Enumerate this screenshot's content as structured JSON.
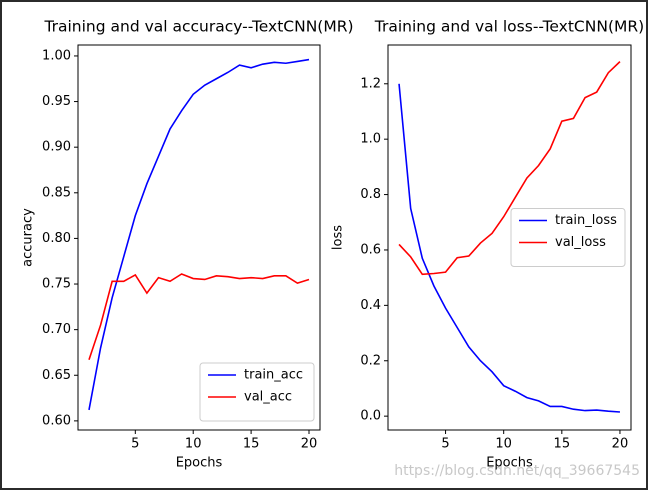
{
  "chart_data": [
    {
      "type": "line",
      "title": "Training and val accuracy--TextCNN(MR)",
      "x_label": "Epochs",
      "y_label": "accuracy",
      "x": [
        1,
        2,
        3,
        4,
        5,
        6,
        7,
        8,
        9,
        10,
        11,
        12,
        13,
        14,
        15,
        16,
        17,
        18,
        19,
        20
      ],
      "series": [
        {
          "name": "train_acc",
          "color": "#0000ff",
          "values": [
            0.612,
            0.68,
            0.735,
            0.78,
            0.825,
            0.86,
            0.89,
            0.92,
            0.94,
            0.958,
            0.968,
            0.975,
            0.982,
            0.99,
            0.987,
            0.991,
            0.993,
            0.992,
            0.994,
            0.996
          ]
        },
        {
          "name": "val_acc",
          "color": "#ff0000",
          "values": [
            0.667,
            0.705,
            0.753,
            0.753,
            0.76,
            0.74,
            0.757,
            0.753,
            0.761,
            0.756,
            0.755,
            0.759,
            0.758,
            0.756,
            0.757,
            0.756,
            0.759,
            0.759,
            0.751,
            0.755
          ]
        }
      ],
      "xlim": [
        0.05,
        20.95
      ],
      "xticks": [
        5,
        10,
        15,
        20
      ],
      "ylim": [
        0.59,
        1.012
      ],
      "yticks": [
        {
          "value": 0.6,
          "label": "0.60"
        },
        {
          "value": 0.65,
          "label": "0.65"
        },
        {
          "value": 0.7,
          "label": "0.70"
        },
        {
          "value": 0.75,
          "label": "0.75"
        },
        {
          "value": 0.8,
          "label": "0.80"
        },
        {
          "value": 0.85,
          "label": "0.85"
        },
        {
          "value": 0.9,
          "label": "0.90"
        },
        {
          "value": 0.95,
          "label": "0.95"
        },
        {
          "value": 1.0,
          "label": "1.00"
        }
      ],
      "legend": "lower right"
    },
    {
      "type": "line",
      "title": "Training and val loss--TextCNN(MR)",
      "x_label": "Epochs",
      "y_label": "loss",
      "x": [
        1,
        2,
        3,
        4,
        5,
        6,
        7,
        8,
        9,
        10,
        11,
        12,
        13,
        14,
        15,
        16,
        17,
        18,
        19,
        20
      ],
      "series": [
        {
          "name": "train_loss",
          "color": "#0000ff",
          "values": [
            1.2,
            0.75,
            0.57,
            0.47,
            0.39,
            0.32,
            0.25,
            0.2,
            0.16,
            0.11,
            0.09,
            0.067,
            0.055,
            0.035,
            0.035,
            0.025,
            0.02,
            0.022,
            0.018,
            0.015
          ]
        },
        {
          "name": "val_loss",
          "color": "#ff0000",
          "values": [
            0.62,
            0.575,
            0.512,
            0.515,
            0.52,
            0.572,
            0.578,
            0.625,
            0.66,
            0.72,
            0.79,
            0.86,
            0.905,
            0.965,
            1.065,
            1.075,
            1.15,
            1.17,
            1.24,
            1.28
          ]
        }
      ],
      "xlim": [
        0.05,
        20.95
      ],
      "xticks": [
        5,
        10,
        15,
        20
      ],
      "ylim": [
        -0.05,
        1.34
      ],
      "yticks": [
        {
          "value": 0,
          "label": "0.0"
        },
        0.2,
        0.4,
        0.6,
        0.8,
        {
          "value": 1,
          "label": "1.0"
        },
        1.2
      ],
      "legend": "center right"
    }
  ],
  "watermark": "https://blog.csdn.net/qq_39667545"
}
